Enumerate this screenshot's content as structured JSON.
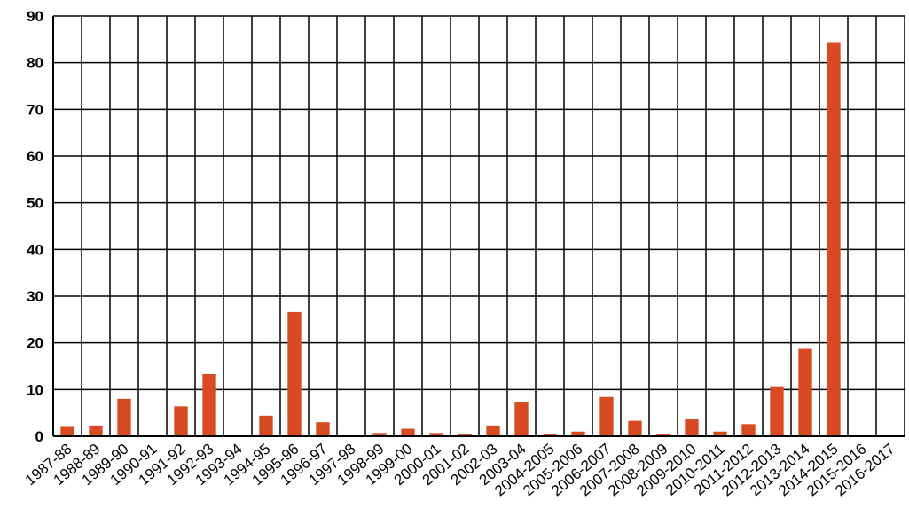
{
  "chart_data": {
    "type": "bar",
    "title": "",
    "xlabel": "",
    "ylabel": "",
    "ylim": [
      0,
      90
    ],
    "yticks": [
      0,
      10,
      20,
      30,
      40,
      50,
      60,
      70,
      80,
      90
    ],
    "grid": true,
    "legend": "none",
    "bar_color": "#d84a21",
    "categories": [
      "1987-88",
      "1988-89",
      "1989-90",
      "1990-91",
      "1991-92",
      "1992-93",
      "1993-94",
      "1994-95",
      "1995-96",
      "1996-97",
      "1997-98",
      "1998-99",
      "1999-00",
      "2000-01",
      "2001-02",
      "2002-03",
      "2003-04",
      "2004-2005",
      "2005-2006",
      "2006-2007",
      "2007-2008",
      "2008-2009",
      "2009-2010",
      "2010-2011",
      "2011-2012",
      "2012-2013",
      "2013-2014",
      "2014-2015",
      "2015-2016",
      "2016-2017"
    ],
    "values": [
      2.0,
      2.3,
      8.0,
      0,
      6.4,
      13.3,
      0,
      4.4,
      26.6,
      3.0,
      0,
      0.7,
      1.6,
      0.7,
      0.4,
      2.3,
      7.4,
      0.4,
      1.0,
      8.4,
      3.3,
      0.4,
      3.7,
      1.0,
      2.6,
      10.7,
      18.7,
      84.4,
      0,
      0
    ]
  }
}
